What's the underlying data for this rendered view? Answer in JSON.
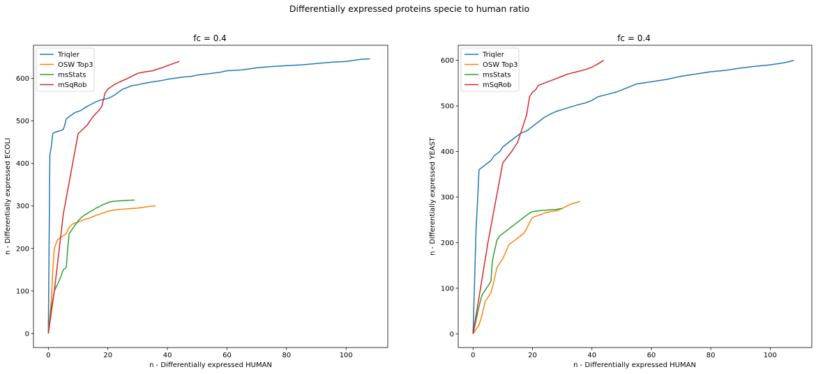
{
  "suptitle": "Differentially expressed proteins specie to human ratio",
  "colors": {
    "Triqler": "#1f77b4",
    "OSW Top3": "#ff7f0e",
    "msStats": "#2ca02c",
    "mSqRob": "#d62728"
  },
  "chart_data": [
    {
      "type": "line",
      "title": "fc = 0.4",
      "xlabel": "n - Differentially expressed HUMAN",
      "ylabel": "n - Differentially expressed ECOLI",
      "xlim": [
        -5,
        114
      ],
      "ylim": [
        -33,
        678
      ],
      "xticks": [
        0,
        20,
        40,
        60,
        80,
        100
      ],
      "yticks": [
        0,
        100,
        200,
        300,
        400,
        500,
        600
      ],
      "legend": "top-left",
      "series": [
        {
          "name": "Triqler",
          "x": [
            0,
            0.5,
            1,
            1.5,
            2,
            3,
            4,
            5,
            5.5,
            6,
            7,
            8,
            9,
            10,
            11,
            12,
            14,
            16,
            18,
            20,
            21,
            22,
            23,
            24,
            25,
            27,
            28,
            30,
            32,
            35,
            38,
            40,
            42,
            45,
            48,
            50,
            55,
            58,
            60,
            65,
            70,
            75,
            80,
            85,
            90,
            95,
            100,
            103,
            105,
            108
          ],
          "y": [
            0,
            420,
            440,
            470,
            473,
            475,
            477,
            480,
            490,
            505,
            510,
            515,
            520,
            522,
            525,
            530,
            538,
            545,
            550,
            553,
            556,
            560,
            565,
            570,
            575,
            580,
            583,
            585,
            588,
            592,
            595,
            598,
            600,
            603,
            605,
            608,
            612,
            615,
            618,
            620,
            625,
            628,
            630,
            632,
            635,
            638,
            640,
            643,
            645,
            646
          ]
        },
        {
          "name": "OSW Top3",
          "x": [
            0,
            0.5,
            1,
            1.5,
            2,
            3,
            4,
            5,
            6,
            7,
            8,
            9,
            10,
            11,
            12,
            13,
            14,
            15,
            16,
            17,
            18,
            19,
            20,
            22,
            24,
            26,
            28,
            30,
            32,
            34,
            36
          ],
          "y": [
            0,
            40,
            80,
            150,
            200,
            220,
            225,
            230,
            235,
            250,
            257,
            260,
            262,
            265,
            268,
            270,
            272,
            275,
            278,
            280,
            283,
            285,
            288,
            290,
            292,
            293,
            294,
            295,
            297,
            299,
            300
          ]
        },
        {
          "name": "msStats",
          "x": [
            0,
            0.5,
            1,
            1.5,
            2,
            3,
            4,
            5,
            6,
            6.5,
            7,
            8,
            9,
            10,
            11,
            12,
            13,
            14,
            15,
            16,
            17,
            18,
            19,
            20,
            21,
            22,
            24,
            26,
            29
          ],
          "y": [
            0,
            30,
            60,
            80,
            100,
            115,
            130,
            150,
            155,
            200,
            235,
            245,
            255,
            265,
            272,
            278,
            282,
            287,
            290,
            295,
            298,
            302,
            305,
            308,
            310,
            311,
            312,
            313,
            314
          ]
        },
        {
          "name": "mSqRob",
          "x": [
            0,
            1,
            2,
            5,
            10,
            13,
            15,
            17,
            18,
            19,
            20,
            22,
            24,
            26,
            28,
            30,
            32,
            35,
            38,
            40,
            42,
            44
          ],
          "y": [
            0,
            50,
            100,
            280,
            470,
            490,
            510,
            525,
            535,
            565,
            575,
            585,
            592,
            598,
            605,
            612,
            615,
            618,
            625,
            630,
            635,
            640
          ]
        }
      ]
    },
    {
      "type": "line",
      "title": "fc = 0.4",
      "xlabel": "n - Differentially expressed HUMAN",
      "ylabel": "n - Differentially expressed YEAST",
      "xlim": [
        -5,
        114
      ],
      "ylim": [
        -30,
        633
      ],
      "xticks": [
        0,
        20,
        40,
        60,
        80,
        100
      ],
      "yticks": [
        0,
        100,
        200,
        300,
        400,
        500,
        600
      ],
      "legend": "top-left",
      "series": [
        {
          "name": "Triqler",
          "x": [
            0,
            1,
            1.5,
            2,
            3,
            4,
            5,
            6,
            7,
            8,
            9,
            10,
            12,
            14,
            16,
            18,
            20,
            22,
            24,
            26,
            28,
            30,
            32,
            35,
            38,
            40,
            42,
            45,
            48,
            50,
            55,
            60,
            65,
            70,
            75,
            80,
            85,
            90,
            95,
            100,
            105,
            108
          ],
          "y": [
            0,
            230,
            290,
            360,
            365,
            370,
            375,
            380,
            390,
            395,
            400,
            410,
            420,
            430,
            440,
            445,
            455,
            465,
            475,
            482,
            488,
            492,
            496,
            502,
            507,
            512,
            520,
            525,
            530,
            535,
            548,
            553,
            558,
            565,
            570,
            575,
            578,
            583,
            587,
            590,
            595,
            600
          ]
        },
        {
          "name": "OSW Top3",
          "x": [
            0,
            1,
            2,
            3,
            4,
            5,
            6,
            7,
            8,
            9,
            10,
            11,
            12,
            13,
            14,
            15,
            16,
            17,
            18,
            19,
            20,
            22,
            24,
            26,
            28,
            30,
            32,
            34,
            36
          ],
          "y": [
            0,
            10,
            20,
            40,
            70,
            80,
            90,
            115,
            145,
            155,
            165,
            180,
            195,
            200,
            205,
            210,
            215,
            220,
            230,
            245,
            255,
            260,
            265,
            268,
            270,
            275,
            282,
            287,
            290
          ]
        },
        {
          "name": "msStats",
          "x": [
            0,
            1,
            2,
            3,
            4,
            5,
            6,
            6.5,
            7,
            8,
            9,
            10,
            11,
            12,
            13,
            14,
            15,
            16,
            17,
            18,
            19,
            20,
            22,
            24,
            26,
            28,
            30
          ],
          "y": [
            0,
            30,
            60,
            85,
            95,
            105,
            115,
            160,
            175,
            205,
            215,
            220,
            225,
            230,
            235,
            240,
            245,
            250,
            255,
            260,
            265,
            268,
            270,
            271,
            272,
            273,
            275
          ]
        },
        {
          "name": "mSqRob",
          "x": [
            0,
            5,
            10,
            13,
            15,
            16,
            17,
            18,
            19,
            20,
            21,
            22,
            24,
            26,
            28,
            30,
            32,
            35,
            38,
            40,
            42,
            44
          ],
          "y": [
            0,
            200,
            375,
            400,
            420,
            440,
            460,
            480,
            520,
            530,
            535,
            545,
            550,
            555,
            560,
            565,
            570,
            575,
            580,
            585,
            592,
            600
          ]
        }
      ]
    }
  ]
}
